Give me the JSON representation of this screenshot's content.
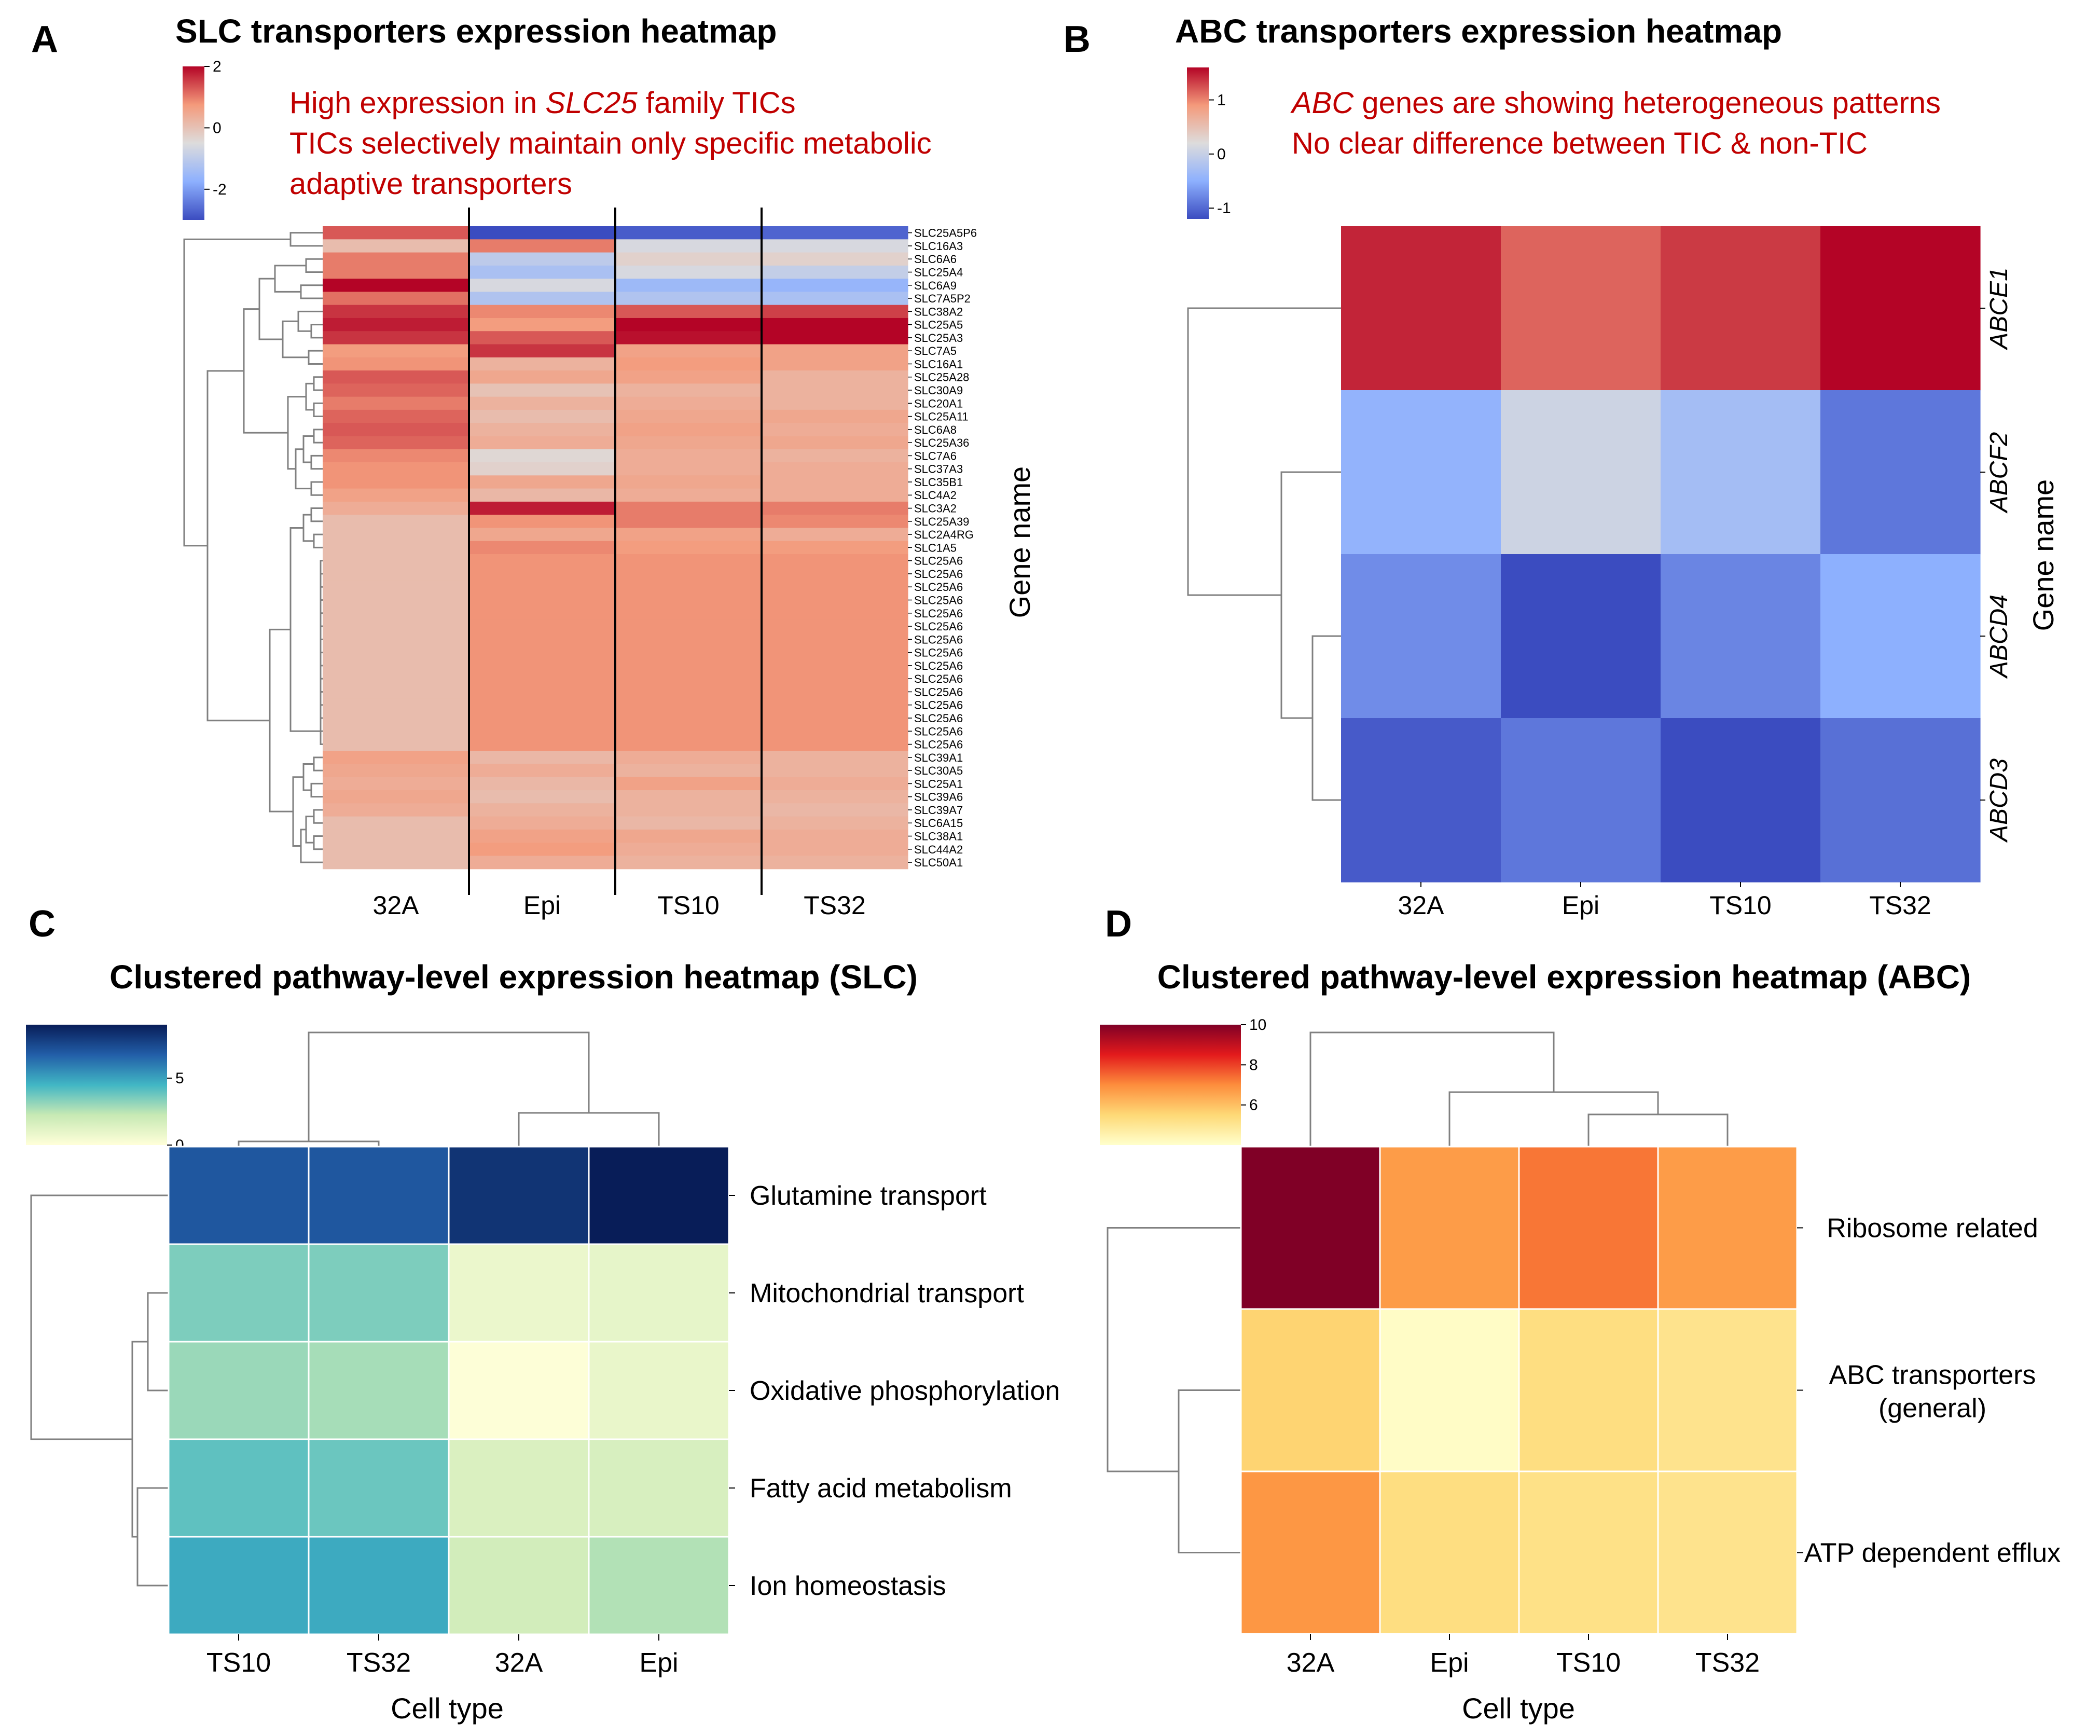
{
  "figure": {
    "panel_letters": [
      "A",
      "B",
      "C",
      "D"
    ]
  },
  "colors": {
    "annotation": "#c00000",
    "divider": "#000000",
    "dendro": "#808080",
    "grid": "#ffffff"
  },
  "chart_data": [
    {
      "id": "A",
      "type": "heatmap",
      "title": "SLC transporters expression heatmap",
      "colormap": "coolwarm",
      "vmin": -3,
      "vmax": 2,
      "colorbar_ticks": [
        2,
        0,
        -2
      ],
      "annotation_lines": [
        [
          {
            "t": "High expression in ",
            "i": false
          },
          {
            "t": "SLC25",
            "i": true
          },
          {
            "t": " family TICs",
            "i": false
          }
        ],
        [
          {
            "t": "TICs selectively maintain only specific metabolic",
            "i": false
          }
        ],
        [
          {
            "t": "adaptive transporters",
            "i": false
          }
        ]
      ],
      "columns": [
        "32A",
        "Epi",
        "TS10",
        "TS32"
      ],
      "ylabel": "Gene name",
      "rows": [
        "SLC25A5P6",
        "SLC16A3",
        "SLC6A6",
        "SLC25A4",
        "SLC6A9",
        "SLC7A5P2",
        "SLC38A2",
        "SLC25A5",
        "SLC25A3",
        "SLC7A5",
        "SLC16A1",
        "SLC25A28",
        "SLC30A9",
        "SLC20A1",
        "SLC25A11",
        "SLC6A8",
        "SLC25A36",
        "SLC7A6",
        "SLC37A3",
        "SLC35B1",
        "SLC4A2",
        "SLC3A2",
        "SLC25A39",
        "SLC2A4RG",
        "SLC1A5",
        "SLC25A6",
        "SLC25A6",
        "SLC25A6",
        "SLC25A6",
        "SLC25A6",
        "SLC25A6",
        "SLC25A6",
        "SLC25A6",
        "SLC25A6",
        "SLC25A6",
        "SLC25A6",
        "SLC25A6",
        "SLC25A6",
        "SLC25A6",
        "SLC25A6",
        "SLC39A1",
        "SLC30A5",
        "SLC25A1",
        "SLC39A6",
        "SLC39A7",
        "SLC6A15",
        "SLC38A1",
        "SLC44A2",
        "SLC50A1"
      ],
      "values": [
        [
          1.3,
          -3.0,
          -2.8,
          -2.7
        ],
        [
          0.1,
          1.0,
          -0.6,
          -0.6
        ],
        [
          1.0,
          -1.0,
          -0.3,
          -0.3
        ],
        [
          1.0,
          -1.3,
          -0.6,
          -0.9
        ],
        [
          2.0,
          -0.6,
          -1.5,
          -1.6
        ],
        [
          1.1,
          -1.2,
          -1.2,
          -1.3
        ],
        [
          1.6,
          0.9,
          1.3,
          1.5
        ],
        [
          1.8,
          0.7,
          2.0,
          2.0
        ],
        [
          1.6,
          1.3,
          1.9,
          2.0
        ],
        [
          0.7,
          1.6,
          0.6,
          0.6
        ],
        [
          0.8,
          0.3,
          0.7,
          0.6
        ],
        [
          1.3,
          0.5,
          0.6,
          0.3
        ],
        [
          1.2,
          0.0,
          0.3,
          0.3
        ],
        [
          1.0,
          0.3,
          0.4,
          0.3
        ],
        [
          1.2,
          0.1,
          0.5,
          0.5
        ],
        [
          1.3,
          0.3,
          0.6,
          0.4
        ],
        [
          1.2,
          0.4,
          0.5,
          0.5
        ],
        [
          0.9,
          -0.4,
          0.4,
          0.3
        ],
        [
          0.8,
          -0.3,
          0.4,
          0.4
        ],
        [
          0.8,
          0.5,
          0.5,
          0.4
        ],
        [
          0.6,
          0.2,
          0.4,
          0.4
        ],
        [
          0.4,
          1.8,
          1.0,
          1.0
        ],
        [
          0.1,
          0.8,
          1.0,
          0.9
        ],
        [
          0.1,
          0.5,
          0.6,
          0.4
        ],
        [
          0.1,
          0.9,
          0.7,
          0.7
        ],
        [
          0.1,
          0.8,
          0.8,
          0.8
        ],
        [
          0.1,
          0.8,
          0.8,
          0.8
        ],
        [
          0.1,
          0.8,
          0.8,
          0.8
        ],
        [
          0.1,
          0.8,
          0.8,
          0.8
        ],
        [
          0.1,
          0.8,
          0.8,
          0.8
        ],
        [
          0.1,
          0.8,
          0.8,
          0.8
        ],
        [
          0.1,
          0.8,
          0.8,
          0.8
        ],
        [
          0.1,
          0.8,
          0.8,
          0.8
        ],
        [
          0.1,
          0.8,
          0.8,
          0.8
        ],
        [
          0.1,
          0.8,
          0.8,
          0.8
        ],
        [
          0.1,
          0.8,
          0.8,
          0.8
        ],
        [
          0.1,
          0.8,
          0.8,
          0.8
        ],
        [
          0.1,
          0.8,
          0.8,
          0.8
        ],
        [
          0.1,
          0.8,
          0.8,
          0.8
        ],
        [
          0.1,
          0.8,
          0.8,
          0.8
        ],
        [
          0.6,
          0.2,
          0.4,
          0.3
        ],
        [
          0.5,
          0.4,
          0.3,
          0.3
        ],
        [
          0.4,
          0.2,
          0.6,
          0.4
        ],
        [
          0.5,
          0.1,
          0.3,
          0.3
        ],
        [
          0.4,
          0.3,
          0.3,
          0.2
        ],
        [
          0.1,
          0.4,
          0.2,
          0.3
        ],
        [
          0.1,
          0.6,
          0.5,
          0.4
        ],
        [
          0.1,
          0.7,
          0.4,
          0.4
        ],
        [
          0.1,
          0.4,
          0.3,
          0.3
        ]
      ]
    },
    {
      "id": "B",
      "type": "heatmap",
      "title": "ABC transporters expression heatmap",
      "colormap": "coolwarm",
      "vmin": -1.2,
      "vmax": 1.6,
      "colorbar_ticks": [
        1,
        0,
        -1
      ],
      "annotation_lines": [
        [
          {
            "t": "ABC",
            "i": true
          },
          {
            "t": " genes are showing heterogeneous patterns",
            "i": false
          }
        ],
        [
          {
            "t": "No clear difference between TIC & non-TIC",
            "i": false
          }
        ]
      ],
      "columns": [
        "32A",
        "Epi",
        "TS10",
        "TS32"
      ],
      "ylabel": "Gene name",
      "rows": [
        "ABCE1",
        "ABCF2",
        "ABCD4",
        "ABCD3"
      ],
      "values": [
        [
          1.45,
          1.15,
          1.35,
          1.6
        ],
        [
          -0.45,
          0.05,
          -0.3,
          -0.9
        ],
        [
          -0.75,
          -1.2,
          -0.8,
          -0.5
        ],
        [
          -1.1,
          -0.9,
          -1.2,
          -0.95
        ]
      ]
    },
    {
      "id": "C",
      "type": "heatmap",
      "title": "Clustered pathway-level expression heatmap (SLC)",
      "colormap": "YlGnBu",
      "vmin": 0,
      "vmax": 9,
      "colorbar_ticks": [
        5,
        0
      ],
      "columns": [
        "TS10",
        "TS32",
        "32A",
        "Epi"
      ],
      "xlabel": "Cell type",
      "rows": [
        "Glutamine transport",
        "Mitochondrial transport",
        "Oxidative phosphorylation",
        "Fatty acid metabolism",
        "Ion homeostasis"
      ],
      "values": [
        [
          7.0,
          7.0,
          8.2,
          9.0
        ],
        [
          3.5,
          3.5,
          0.8,
          1.0
        ],
        [
          3.0,
          2.8,
          0.1,
          0.9
        ],
        [
          4.0,
          3.8,
          1.5,
          1.6
        ],
        [
          4.8,
          4.8,
          1.8,
          2.6
        ]
      ]
    },
    {
      "id": "D",
      "type": "heatmap",
      "title": "Clustered pathway-level expression heatmap (ABC)",
      "colormap": "YlOrRd",
      "vmin": 4,
      "vmax": 10,
      "colorbar_ticks": [
        10,
        8,
        6
      ],
      "columns": [
        "32A",
        "Epi",
        "TS10",
        "TS32"
      ],
      "xlabel": "Cell type",
      "rows": [
        "Ribosome related",
        "ABC transporters (general)",
        "ATP dependent efflux"
      ],
      "values": [
        [
          10.0,
          6.7,
          7.3,
          6.7
        ],
        [
          5.6,
          4.1,
          5.3,
          5.1
        ],
        [
          6.8,
          5.3,
          5.2,
          5.1
        ]
      ]
    }
  ]
}
